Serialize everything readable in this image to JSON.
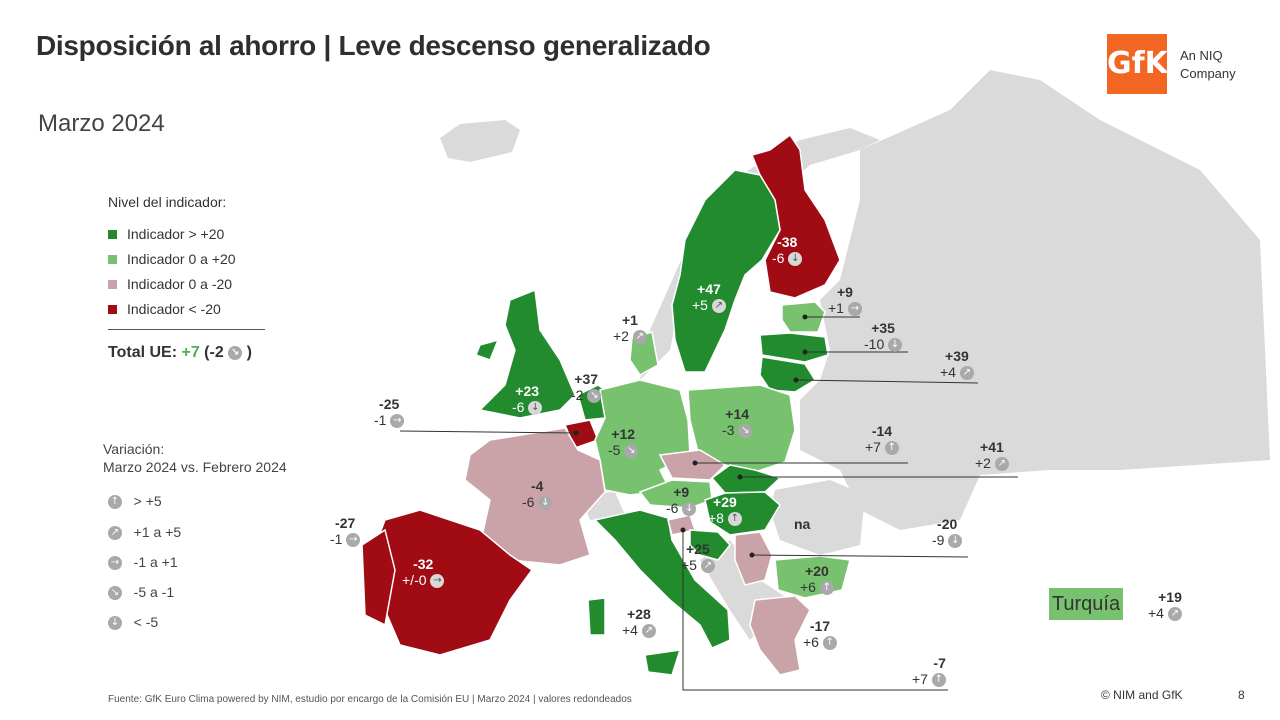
{
  "title": "Disposición al ahorro | Leve descenso generalizado",
  "subtitle": "Marzo 2024",
  "logo": {
    "mark": "GfK",
    "line1": "An NIQ",
    "line2": "Company"
  },
  "legend": {
    "title": "Nivel del indicador:",
    "items": [
      {
        "label": "Indicador > +20",
        "color": "#228b2e"
      },
      {
        "label": "Indicador 0 a +20",
        "color": "#77c16f"
      },
      {
        "label": "Indicador 0 a -20",
        "color": "#c9a3a7"
      },
      {
        "label": "Indicador < -20",
        "color": "#a00b14"
      }
    ]
  },
  "total": {
    "prefix": "Total UE: ",
    "value": "+7",
    "change_open": " (-2",
    "change_close": " )"
  },
  "variation": {
    "title1": "Variación:",
    "title2": "Marzo 2024 vs. Febrero 2024",
    "items": [
      {
        "icon": "arrow-up-icon",
        "label": "> +5"
      },
      {
        "icon": "arrow-up-right-icon",
        "label": "+1 a +5"
      },
      {
        "icon": "arrow-right-icon",
        "label": "-1 a +1"
      },
      {
        "icon": "arrow-down-right-icon",
        "label": "-5 a -1"
      },
      {
        "icon": "arrow-down-icon",
        "label": "< -5"
      }
    ]
  },
  "countries": [
    {
      "id": "fi",
      "value": "-38",
      "change": "-6",
      "trend": "down",
      "white": true
    },
    {
      "id": "se",
      "value": "+47",
      "change": "+5",
      "trend": "up-right",
      "white": true
    },
    {
      "id": "ee",
      "value": "+9",
      "change": "+1",
      "trend": "right"
    },
    {
      "id": "lv",
      "value": "+35",
      "change": "-10",
      "trend": "down"
    },
    {
      "id": "lt",
      "value": "+39",
      "change": "+4",
      "trend": "up-right"
    },
    {
      "id": "dk",
      "value": "+1",
      "change": "+2",
      "trend": "up-right"
    },
    {
      "id": "ie",
      "value": "+23",
      "change": "-6",
      "trend": "down",
      "white": true
    },
    {
      "id": "nl",
      "value": "+37",
      "change": "-2",
      "trend": "down-right"
    },
    {
      "id": "be",
      "value": "-25",
      "change": "-1",
      "trend": "right"
    },
    {
      "id": "de",
      "value": "+12",
      "change": "-5",
      "trend": "down-right"
    },
    {
      "id": "pl",
      "value": "+14",
      "change": "-3",
      "trend": "down-right"
    },
    {
      "id": "cz",
      "value": "-14",
      "change": "+7",
      "trend": "up"
    },
    {
      "id": "sk",
      "value": "+41",
      "change": "+2",
      "trend": "up-right"
    },
    {
      "id": "fr",
      "value": "-4",
      "change": "-6",
      "trend": "down"
    },
    {
      "id": "at",
      "value": "+9",
      "change": "-6",
      "trend": "down"
    },
    {
      "id": "hu",
      "value": "+29",
      "change": "+8",
      "trend": "up",
      "white": true
    },
    {
      "id": "ro",
      "value": "na"
    },
    {
      "id": "lu",
      "value": "-27",
      "change": "-1",
      "trend": "right"
    },
    {
      "id": "es",
      "value": "-32",
      "change": "+/-0",
      "trend": "right",
      "white": true
    },
    {
      "id": "si",
      "value": "-20",
      "change": "-9",
      "trend": "down"
    },
    {
      "id": "hr",
      "value": "+25",
      "change": "+5",
      "trend": "up-right"
    },
    {
      "id": "bg",
      "value": "+20",
      "change": "+6",
      "trend": "up"
    },
    {
      "id": "it",
      "value": "+28",
      "change": "+4",
      "trend": "up-right"
    },
    {
      "id": "gr",
      "value": "-17",
      "change": "+6",
      "trend": "up"
    },
    {
      "id": "mt",
      "value": "-7",
      "change": "+7",
      "trend": "up"
    }
  ],
  "turkey": {
    "name": "Turquía",
    "value": "+19",
    "change": "+4",
    "trend": "up-right"
  },
  "footer": {
    "source": "Fuente: GfK Euro Clima powered by NIM,  estudio por encargo de la Comisión  EU | Marzo 2024 | valores redondeados",
    "copyright": "© NIM and GfK",
    "page": "8"
  }
}
